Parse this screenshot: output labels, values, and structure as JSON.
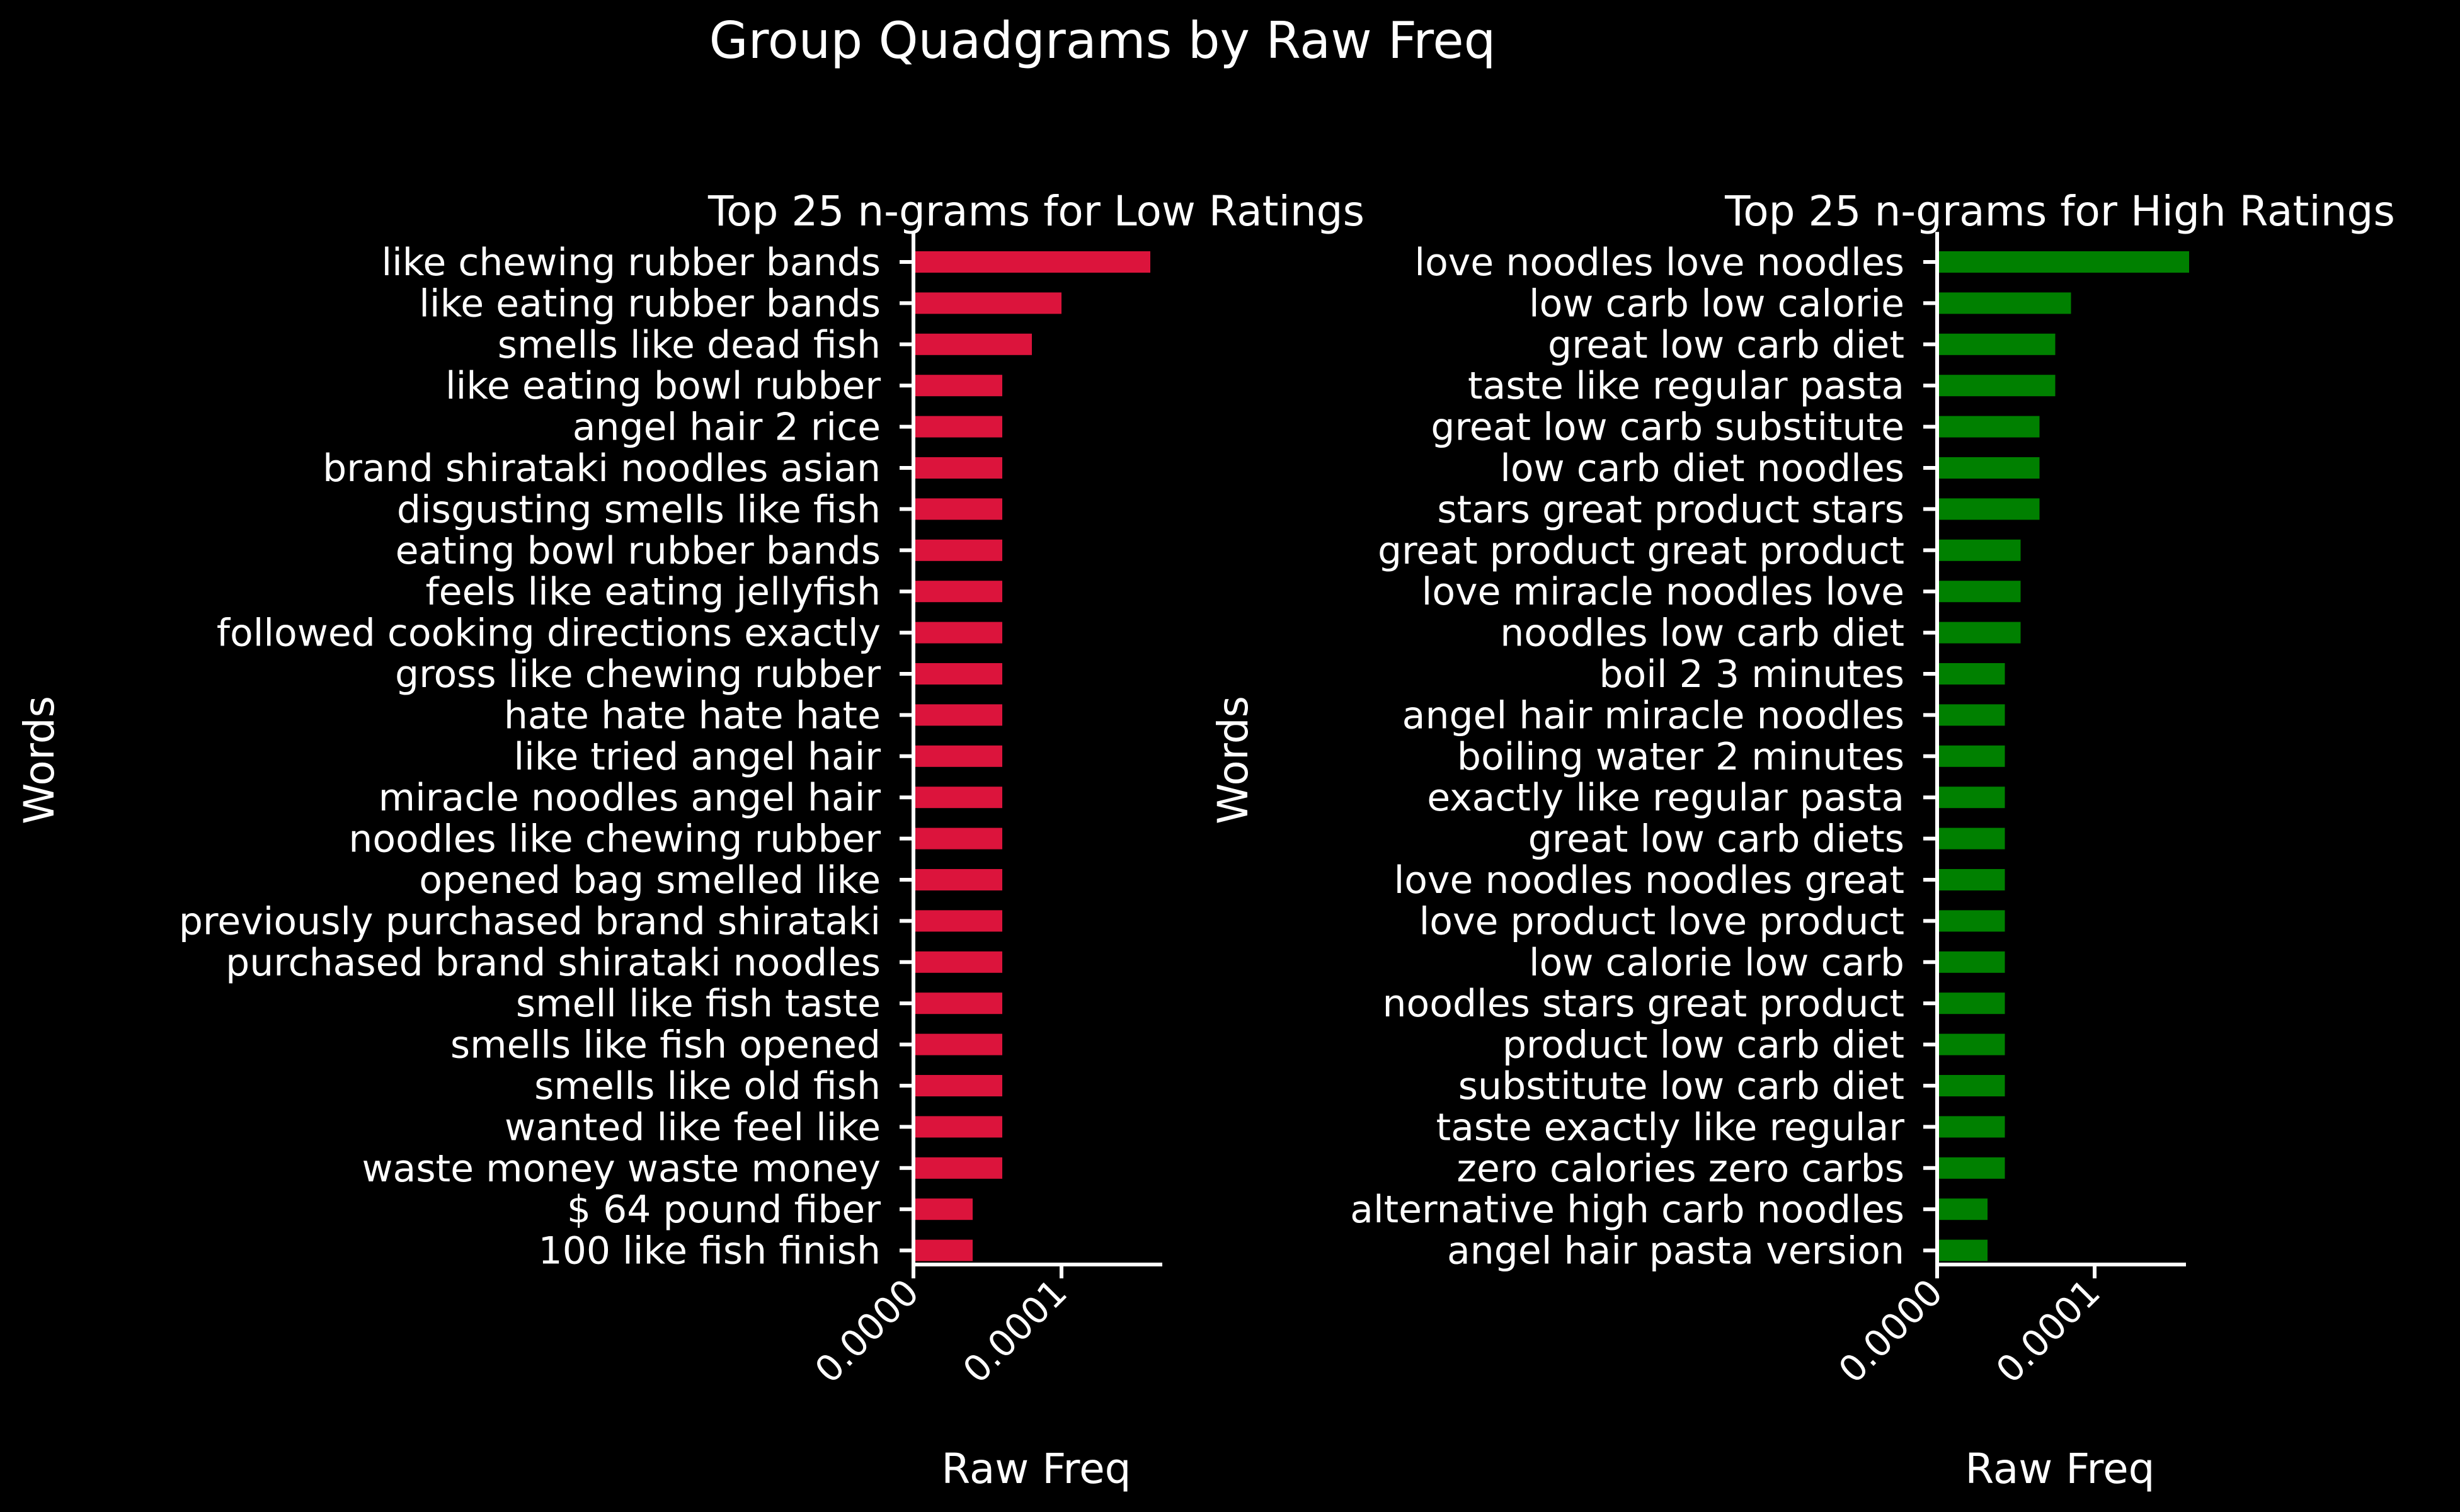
{
  "title": "Group Quadgrams by Raw Freq",
  "chart_data": [
    {
      "type": "bar",
      "orientation": "horizontal",
      "title": "Top 25 n-grams for Low Ratings",
      "xlabel": "Raw Freq",
      "ylabel": "Words",
      "xlim": [
        0,
        0.00017
      ],
      "xticks": [
        "0.0000",
        "0.0001"
      ],
      "color": "#dc143c",
      "grid": false,
      "categories": [
        "like chewing rubber bands",
        "like eating rubber bands",
        "smells like dead fish",
        "like eating bowl rubber",
        "angel hair 2 rice",
        "brand shirataki noodles asian",
        "disgusting smells like fish",
        "eating bowl rubber bands",
        "feels like eating jellyfish",
        "followed cooking directions exactly",
        "gross like chewing rubber",
        "hate hate hate hate",
        "like tried angel hair",
        "miracle noodles angel hair",
        "noodles like chewing rubber",
        "opened bag smelled like",
        "previously purchased brand shirataki",
        "purchased brand shirataki noodles",
        "smell like fish taste",
        "smells like fish opened",
        "smells like old fish",
        "wanted like feel like",
        "waste money waste money",
        "$ 64 pound fiber",
        "100 like fish finish"
      ],
      "values": [
        0.00016,
        0.0001,
        8e-05,
        6e-05,
        6e-05,
        6e-05,
        6e-05,
        6e-05,
        6e-05,
        6e-05,
        6e-05,
        6e-05,
        6e-05,
        6e-05,
        6e-05,
        6e-05,
        6e-05,
        6e-05,
        6e-05,
        6e-05,
        6e-05,
        6e-05,
        6e-05,
        4e-05,
        4e-05
      ]
    },
    {
      "type": "bar",
      "orientation": "horizontal",
      "title": "Top 25 n-grams for High Ratings",
      "xlabel": "Raw Freq",
      "ylabel": "Words",
      "xlim": [
        0,
        0.00017
      ],
      "xticks": [
        "0.0000",
        "0.0001"
      ],
      "color": "#008000",
      "grid": false,
      "categories": [
        "love noodles love noodles",
        "low carb low calorie",
        "great low carb diet",
        "taste like regular pasta",
        "great low carb substitute",
        "low carb diet noodles",
        "stars great product stars",
        "great product great product",
        "love miracle noodles love",
        "noodles low carb diet",
        "boil 2 3 minutes",
        "angel hair miracle noodles",
        "boiling water 2 minutes",
        "exactly like regular pasta",
        "great low carb diets",
        "love noodles noodles great",
        "love product love product",
        "low calorie low carb",
        "noodles stars great product",
        "product low carb diet",
        "substitute low carb diet",
        "taste exactly like regular",
        "zero calories zero carbs",
        "alternative high carb noodles",
        "angel hair pasta version"
      ],
      "values": [
        0.00016,
        8.5e-05,
        7.5e-05,
        7.5e-05,
        6.5e-05,
        6.5e-05,
        6.5e-05,
        5.3e-05,
        5.3e-05,
        5.3e-05,
        4.3e-05,
        4.3e-05,
        4.3e-05,
        4.3e-05,
        4.3e-05,
        4.3e-05,
        4.3e-05,
        4.3e-05,
        4.3e-05,
        4.3e-05,
        4.3e-05,
        4.3e-05,
        4.3e-05,
        3.2e-05,
        3.2e-05
      ]
    }
  ]
}
